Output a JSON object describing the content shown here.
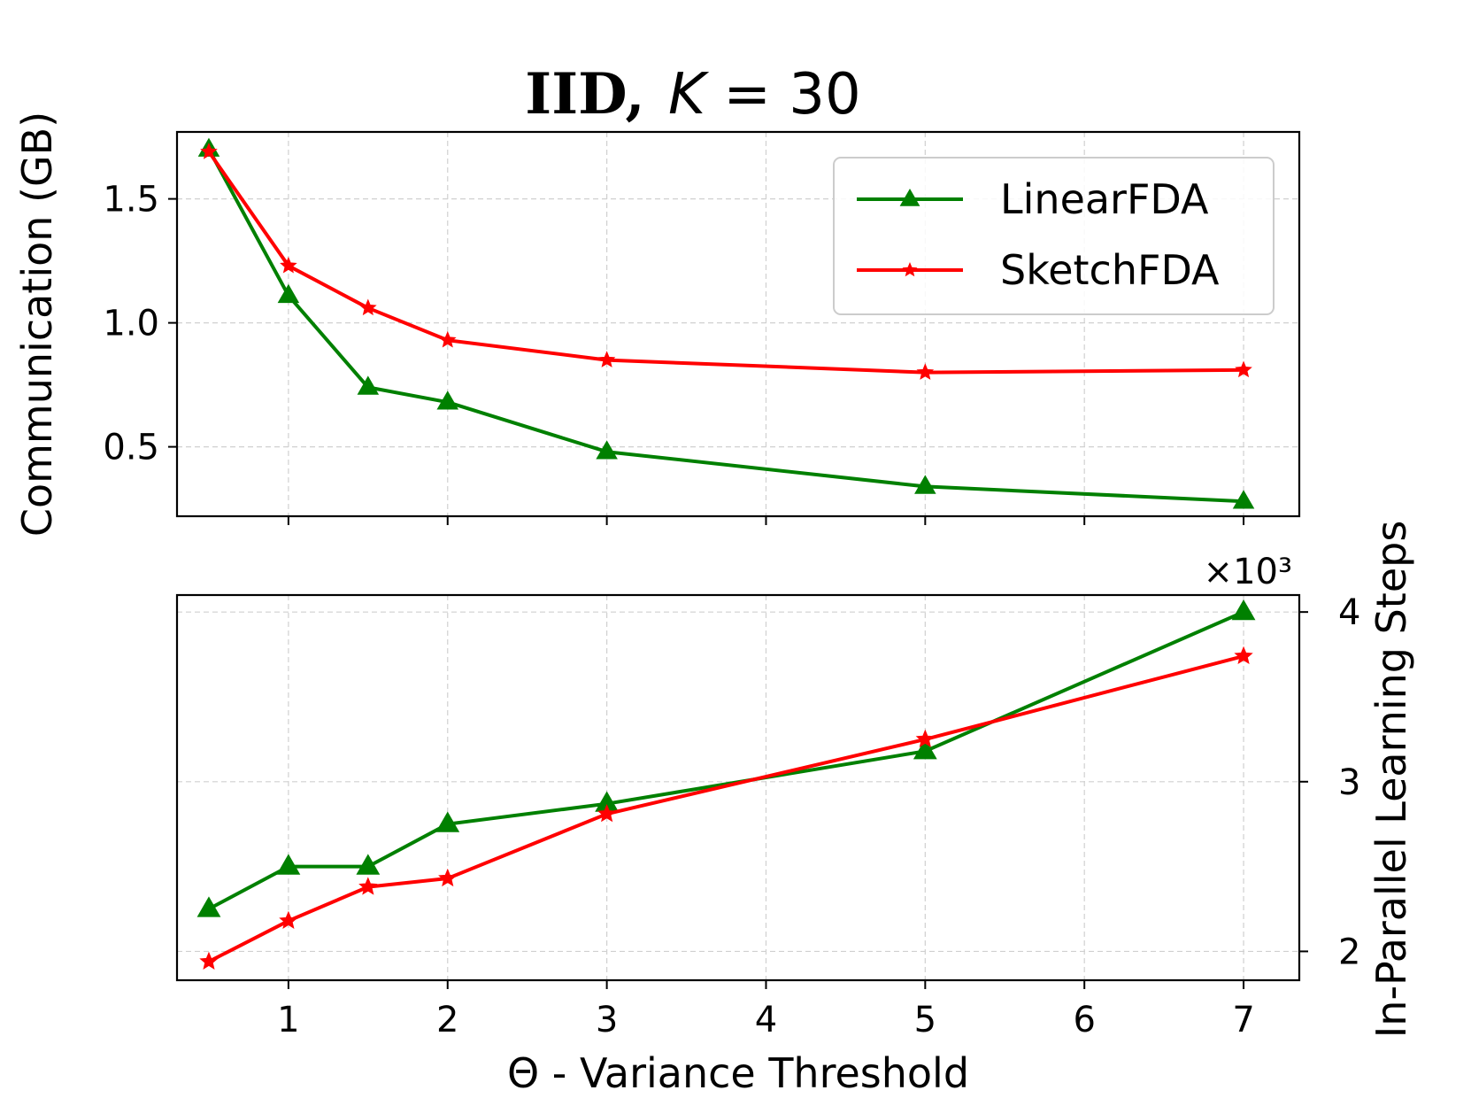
{
  "chart_data": [
    {
      "type": "line",
      "panel": "top",
      "title": "IID, K = 30",
      "title_parts": {
        "bold": "IID,",
        "italic": "K",
        "rest": " = 30"
      },
      "ylabel": "Communication (GB)",
      "ylim": [
        0.22,
        1.77
      ],
      "yticks": [
        0.5,
        1.0,
        1.5
      ],
      "ytick_labels": [
        "0.5",
        "1.0",
        "1.5"
      ],
      "grid": true,
      "legend_position": "top-right",
      "x": [
        0.5,
        1,
        1.5,
        2,
        3,
        5,
        7
      ],
      "series": [
        {
          "name": "LinearFDA",
          "color": "#008000",
          "marker": "triangle",
          "values": [
            1.7,
            1.11,
            0.74,
            0.68,
            0.48,
            0.34,
            0.28
          ]
        },
        {
          "name": "SketchFDA",
          "color": "#ff0000",
          "marker": "star",
          "values": [
            1.69,
            1.23,
            1.06,
            0.93,
            0.85,
            0.8,
            0.81
          ]
        }
      ]
    },
    {
      "type": "line",
      "panel": "bottom",
      "ylabel": "In-Parallel Learning Steps",
      "y_axis_side": "right",
      "scale_label": "×10³",
      "ylim": [
        1.83,
        4.1
      ],
      "yticks": [
        2,
        3,
        4
      ],
      "ytick_labels": [
        "2",
        "3",
        "4"
      ],
      "xlabel": "Θ - Variance Threshold",
      "xlim": [
        0.3,
        7.35
      ],
      "xticks": [
        1,
        2,
        3,
        4,
        5,
        6,
        7
      ],
      "xtick_labels": [
        "1",
        "2",
        "3",
        "4",
        "5",
        "6",
        "7"
      ],
      "grid": true,
      "x": [
        0.5,
        1,
        1.5,
        2,
        3,
        5,
        7
      ],
      "series": [
        {
          "name": "LinearFDA",
          "color": "#008000",
          "marker": "triangle",
          "values": [
            2.25,
            2.5,
            2.5,
            2.75,
            2.87,
            3.18,
            4.0
          ]
        },
        {
          "name": "SketchFDA",
          "color": "#ff0000",
          "marker": "star",
          "values": [
            1.94,
            2.18,
            2.38,
            2.43,
            2.81,
            3.25,
            3.74
          ]
        }
      ]
    }
  ]
}
